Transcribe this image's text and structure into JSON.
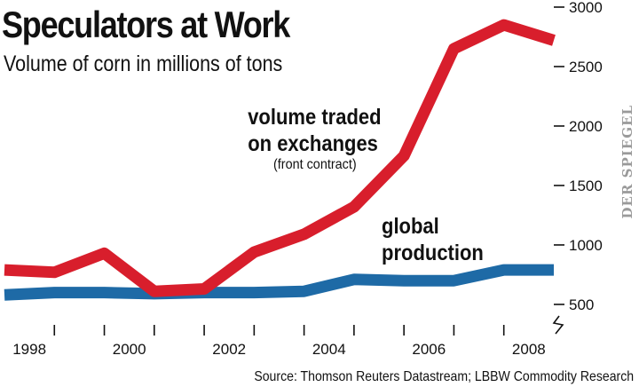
{
  "header": {
    "title": "Speculators at Work",
    "subtitle": "Volume of corn in millions of tons"
  },
  "annotations": {
    "volume_line1": "volume traded",
    "volume_line2": "on exchanges",
    "front_contract": "(front contract)",
    "global_line1": "global",
    "global_line2": "production"
  },
  "footer": {
    "source": "Source: Thomson Reuters Datastream; LBBW Commodity Research",
    "credit": "DER SPIEGEL"
  },
  "colors": {
    "volume": "#d81e2c",
    "production": "#1e6aa6"
  },
  "chart_data": {
    "type": "line",
    "x": [
      1997.5,
      1998.5,
      1999.5,
      2000.5,
      2001.5,
      2002.5,
      2003.5,
      2004.5,
      2005.5,
      2006.5,
      2007.5,
      2008.5
    ],
    "series": [
      {
        "name": "volume traded on exchanges (front contract)",
        "values": [
          790,
          770,
          930,
          610,
          630,
          940,
          1090,
          1320,
          1750,
          2650,
          2850,
          2720
        ]
      },
      {
        "name": "global production",
        "values": [
          580,
          600,
          600,
          590,
          600,
          600,
          610,
          710,
          700,
          700,
          790,
          790
        ]
      }
    ],
    "y_ticks": [
      "3000",
      "2500",
      "2000",
      "1500",
      "1000",
      "500"
    ],
    "y_tick_values": [
      3000,
      2500,
      2000,
      1500,
      1000,
      500
    ],
    "x_ticks": [
      "1998",
      "2000",
      "2002",
      "2004",
      "2006",
      "2008"
    ],
    "x_tick_values": [
      1998,
      2000,
      2002,
      2004,
      2006,
      2008
    ],
    "ylim": [
      500,
      3000
    ],
    "xlim": [
      1997.5,
      2008.5
    ],
    "y_axis_break": true,
    "grid": false
  }
}
